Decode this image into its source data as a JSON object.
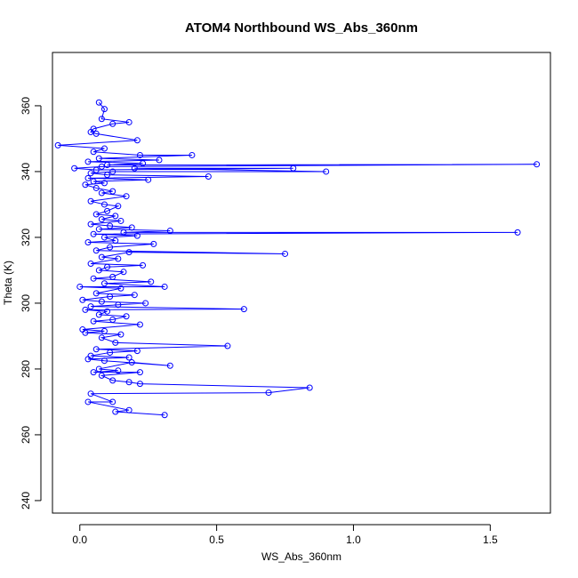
{
  "chart_data": {
    "type": "line",
    "title": "ATOM4 Northbound WS_Abs_360nm",
    "xlabel": "WS_Abs_360nm",
    "ylabel": "Theta (K)",
    "xlim": [
      -0.1,
      1.72
    ],
    "ylim": [
      236.2,
      376.2
    ],
    "xticks": [
      0.0,
      0.5,
      1.0,
      1.5
    ],
    "xtick_labels": [
      "0.0",
      "0.5",
      "1.0",
      "1.5"
    ],
    "yticks": [
      240,
      260,
      280,
      300,
      320,
      340,
      360
    ],
    "ytick_labels": [
      "240",
      "260",
      "280",
      "300",
      "320",
      "340",
      "360"
    ],
    "grid": false,
    "legend": "none",
    "marker": "open-circle",
    "series": [
      {
        "color": "#0000ff",
        "points": [
          [
            0.07,
            361.0
          ],
          [
            0.09,
            359.0
          ],
          [
            0.08,
            356.0
          ],
          [
            0.18,
            355.0
          ],
          [
            0.12,
            354.5
          ],
          [
            0.05,
            353.0
          ],
          [
            0.04,
            352.0
          ],
          [
            0.06,
            351.5
          ],
          [
            0.21,
            349.5
          ],
          [
            -0.08,
            348.0
          ],
          [
            0.09,
            347.0
          ],
          [
            0.05,
            346.0
          ],
          [
            0.22,
            345.0
          ],
          [
            0.41,
            345.0
          ],
          [
            0.07,
            344.0
          ],
          [
            0.29,
            343.5
          ],
          [
            0.03,
            343.0
          ],
          [
            0.23,
            342.5
          ],
          [
            0.1,
            342.0
          ],
          [
            1.67,
            342.2
          ],
          [
            0.08,
            341.5
          ],
          [
            -0.02,
            341.0
          ],
          [
            0.06,
            340.5
          ],
          [
            0.78,
            341.0
          ],
          [
            0.2,
            341.0
          ],
          [
            0.9,
            340.0
          ],
          [
            0.12,
            340.0
          ],
          [
            0.04,
            339.5
          ],
          [
            0.1,
            339.0
          ],
          [
            0.47,
            338.5
          ],
          [
            0.03,
            338.0
          ],
          [
            0.25,
            337.5
          ],
          [
            0.05,
            337.0
          ],
          [
            0.09,
            336.5
          ],
          [
            0.02,
            336.0
          ],
          [
            0.06,
            335.0
          ],
          [
            0.12,
            334.0
          ],
          [
            0.08,
            333.5
          ],
          [
            0.17,
            332.5
          ],
          [
            0.04,
            331.0
          ],
          [
            0.09,
            330.0
          ],
          [
            0.14,
            329.5
          ],
          [
            0.1,
            328.0
          ],
          [
            0.06,
            327.0
          ],
          [
            0.13,
            326.5
          ],
          [
            0.08,
            325.5
          ],
          [
            0.15,
            325.0
          ],
          [
            0.04,
            324.0
          ],
          [
            0.11,
            323.5
          ],
          [
            0.19,
            323.0
          ],
          [
            0.07,
            322.5
          ],
          [
            0.33,
            322.0
          ],
          [
            0.16,
            321.5
          ],
          [
            1.6,
            321.5
          ],
          [
            0.05,
            321.0
          ],
          [
            0.21,
            320.5
          ],
          [
            0.09,
            320.0
          ],
          [
            0.13,
            319.0
          ],
          [
            0.03,
            318.5
          ],
          [
            0.27,
            318.0
          ],
          [
            0.11,
            317.0
          ],
          [
            0.06,
            316.0
          ],
          [
            0.75,
            315.0
          ],
          [
            0.18,
            315.5
          ],
          [
            0.08,
            314.0
          ],
          [
            0.14,
            313.5
          ],
          [
            0.04,
            312.0
          ],
          [
            0.23,
            311.5
          ],
          [
            0.1,
            311.0
          ],
          [
            0.07,
            310.0
          ],
          [
            0.16,
            309.5
          ],
          [
            0.12,
            308.0
          ],
          [
            0.05,
            307.5
          ],
          [
            0.26,
            306.5
          ],
          [
            0.09,
            306.0
          ],
          [
            0.31,
            305.0
          ],
          [
            0.0,
            305.0
          ],
          [
            0.15,
            304.5
          ],
          [
            0.06,
            303.0
          ],
          [
            0.2,
            302.5
          ],
          [
            0.11,
            302.0
          ],
          [
            0.01,
            301.0
          ],
          [
            0.08,
            300.5
          ],
          [
            0.24,
            300.0
          ],
          [
            0.14,
            299.5
          ],
          [
            0.04,
            299.0
          ],
          [
            0.6,
            298.2
          ],
          [
            0.02,
            298.0
          ],
          [
            0.1,
            297.5
          ],
          [
            0.07,
            296.5
          ],
          [
            0.17,
            296.0
          ],
          [
            0.12,
            295.0
          ],
          [
            0.05,
            294.5
          ],
          [
            0.22,
            293.5
          ],
          [
            0.01,
            292.0
          ],
          [
            0.09,
            291.5
          ],
          [
            0.02,
            291.0
          ],
          [
            0.15,
            290.5
          ],
          [
            0.08,
            289.5
          ],
          [
            0.13,
            288.0
          ],
          [
            0.54,
            287.0
          ],
          [
            0.06,
            286.0
          ],
          [
            0.21,
            285.5
          ],
          [
            0.11,
            285.0
          ],
          [
            0.04,
            284.0
          ],
          [
            0.18,
            283.5
          ],
          [
            0.03,
            283.0
          ],
          [
            0.09,
            282.5
          ],
          [
            0.33,
            281.0
          ],
          [
            0.19,
            282.0
          ],
          [
            0.07,
            280.0
          ],
          [
            0.14,
            279.5
          ],
          [
            0.05,
            279.0
          ],
          [
            0.22,
            279.0
          ],
          [
            0.08,
            278.0
          ],
          [
            0.12,
            276.5
          ],
          [
            0.18,
            276.0
          ],
          [
            0.22,
            275.5
          ],
          [
            0.84,
            274.3
          ],
          [
            0.69,
            272.8
          ],
          [
            0.04,
            272.5
          ],
          [
            0.12,
            270.0
          ],
          [
            0.03,
            270.0
          ],
          [
            0.18,
            267.5
          ],
          [
            0.13,
            267.0
          ],
          [
            0.31,
            266.0
          ]
        ]
      }
    ]
  }
}
